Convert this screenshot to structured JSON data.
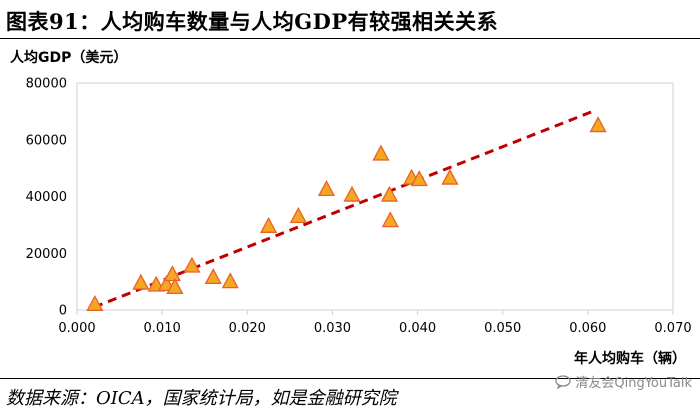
{
  "header": {
    "title": "图表91：人均购车数量与人均GDP有较强相关关系"
  },
  "source_note": "数据来源：OICA，国家统计局，如是金融研究院",
  "watermark": {
    "text": "清友会QingYouTalk",
    "icon": "chat-bubble-icon",
    "color": "#8a8a8a"
  },
  "chart_data": {
    "type": "scatter",
    "title": "图表91：人均购车数量与人均GDP有较强相关关系",
    "xlabel": "年人均购车（辆）",
    "ylabel": "人均GDP（美元）",
    "xlim": [
      0,
      0.07
    ],
    "ylim": [
      0,
      80000
    ],
    "x_ticks": [
      0.0,
      0.01,
      0.02,
      0.03,
      0.04,
      0.05,
      0.06,
      0.07
    ],
    "x_tick_labels": [
      "0.000",
      "0.010",
      "0.020",
      "0.030",
      "0.040",
      "0.050",
      "0.060",
      "0.070"
    ],
    "y_ticks": [
      0,
      20000,
      40000,
      60000,
      80000
    ],
    "y_tick_labels": [
      "0",
      "20000",
      "40000",
      "60000",
      "80000"
    ],
    "grid": false,
    "marker": "triangle",
    "marker_fill": "#f5a623",
    "marker_edge": "#e8622a",
    "trendline": {
      "style": "dashed",
      "color": "#c00000",
      "x": [
        0.002,
        0.061
      ],
      "y": [
        1000,
        70500
      ]
    },
    "points": [
      {
        "x": 0.0021,
        "y": 2000
      },
      {
        "x": 0.0075,
        "y": 9500
      },
      {
        "x": 0.0093,
        "y": 8800
      },
      {
        "x": 0.0105,
        "y": 9000
      },
      {
        "x": 0.0112,
        "y": 12500
      },
      {
        "x": 0.0115,
        "y": 8000
      },
      {
        "x": 0.0135,
        "y": 15500
      },
      {
        "x": 0.016,
        "y": 11500
      },
      {
        "x": 0.018,
        "y": 10000
      },
      {
        "x": 0.0225,
        "y": 29500
      },
      {
        "x": 0.026,
        "y": 33000
      },
      {
        "x": 0.0293,
        "y": 42500
      },
      {
        "x": 0.0323,
        "y": 40500
      },
      {
        "x": 0.0357,
        "y": 55000
      },
      {
        "x": 0.0367,
        "y": 40500
      },
      {
        "x": 0.0368,
        "y": 31500
      },
      {
        "x": 0.0393,
        "y": 46500
      },
      {
        "x": 0.0402,
        "y": 46000
      },
      {
        "x": 0.0438,
        "y": 46500
      },
      {
        "x": 0.0612,
        "y": 65000
      }
    ]
  }
}
